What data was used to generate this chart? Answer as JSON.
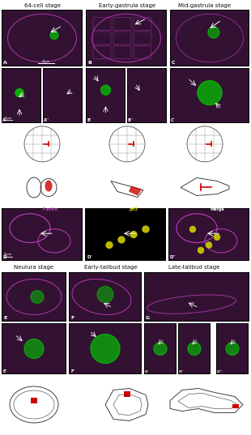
{
  "title_row1": [
    "64-cell stage",
    "Early-gastrula stage",
    "Mid-gastrula stage"
  ],
  "title_row2": [
    "Neulura stage",
    "Early-tailbud stage",
    "Late-tailbud stage"
  ],
  "scale1": "40µm",
  "scale2": "10µm",
  "scale3": "20µm",
  "factin_label": "F-actin",
  "ph3_label": "pH3",
  "merge_label": "Merge",
  "bg_black": "#000000",
  "bg_white": "#ffffff",
  "magenta": "#cc44cc",
  "green": "#00cc00",
  "yellow": "#cccc00",
  "red": "#cc0000",
  "text_white": "#ffffff",
  "text_black": "#000000"
}
